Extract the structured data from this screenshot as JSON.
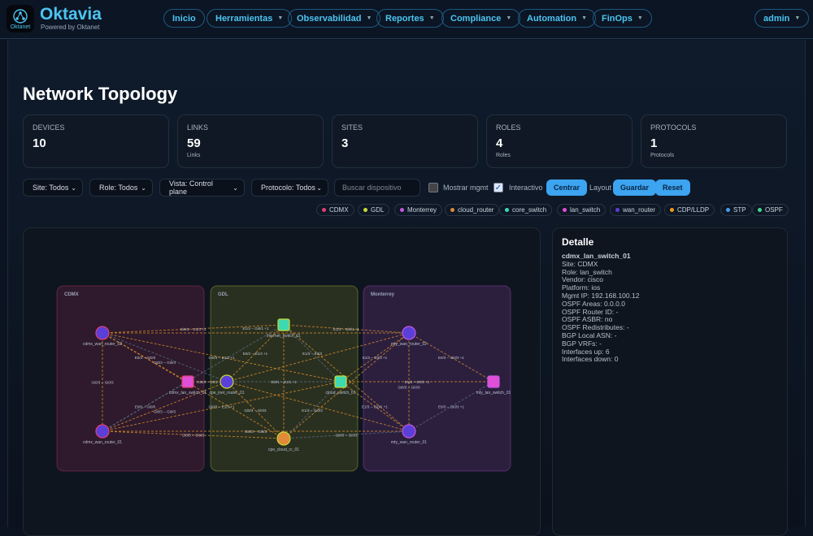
{
  "app": {
    "name": "Oktavia",
    "powered": "Powered by Oktanet",
    "logo_text": "Oktanet"
  },
  "nav": [
    {
      "label": "Inicio"
    },
    {
      "label": "Herramientas",
      "dropdown": true
    },
    {
      "label": "Observabilidad",
      "dropdown": true
    },
    {
      "label": "Reportes",
      "dropdown": true
    },
    {
      "label": "Compliance",
      "dropdown": true
    },
    {
      "label": "Automation",
      "dropdown": true
    },
    {
      "label": "FinOps",
      "dropdown": true
    }
  ],
  "user": {
    "label": "admin"
  },
  "page": {
    "title": "Network Topology"
  },
  "stats": [
    {
      "label": "DEVICES",
      "value": "10",
      "sub": ""
    },
    {
      "label": "LINKS",
      "value": "59",
      "sub": "Links"
    },
    {
      "label": "SITES",
      "value": "3",
      "sub": ""
    },
    {
      "label": "ROLES",
      "value": "4",
      "sub": "Roles"
    },
    {
      "label": "PROTOCOLS",
      "value": "1",
      "sub": "Protocols"
    }
  ],
  "filters": {
    "site": "Site: Todos",
    "role": "Role: Todos",
    "vista": "Vista: Control plane",
    "protocolo": "Protocolo: Todos",
    "search_placeholder": "Buscar dispositivo",
    "mostrar_mgmt": "Mostrar mgmt",
    "mostrar_mgmt_checked": false,
    "interactivo": "Interactivo",
    "interactivo_checked": true,
    "centrar": "Centrar",
    "layout": "Layout",
    "guardar": "Guardar",
    "reset": "Reset"
  },
  "legend": [
    {
      "label": "CDMX",
      "color": "#e0406f"
    },
    {
      "label": "GDL",
      "color": "#c8d93a"
    },
    {
      "label": "Monterrey",
      "color": "#c558e0"
    },
    {
      "label": "cloud_router",
      "color": "#e08a3a"
    },
    {
      "label": "core_switch",
      "color": "#3fd9b0"
    },
    {
      "label": "lan_switch",
      "color": "#e04fd9"
    },
    {
      "label": "wan_router",
      "color": "#5b3fd9"
    },
    {
      "label": "CDP/LLDP",
      "color": "#f29a1a"
    },
    {
      "label": "STP",
      "color": "#4a9cf0"
    },
    {
      "label": "OSPF",
      "color": "#3fd98a"
    }
  ],
  "topology": {
    "sites": [
      {
        "name": "CDMX",
        "color": "#e0406f"
      },
      {
        "name": "GDL",
        "color": "#c8d93a"
      },
      {
        "name": "Monterrey",
        "color": "#c558e0"
      }
    ],
    "nodes": [
      {
        "id": "cdmx_wan_router_02",
        "site": "CDMX",
        "role": "wan_router"
      },
      {
        "id": "cdmx_wan_router_01",
        "site": "CDMX",
        "role": "wan_router"
      },
      {
        "id": "cdmx_lan_switch_01",
        "site": "CDMX",
        "role": "lan_switch"
      },
      {
        "id": "cpe_inet_router_01",
        "site": "GDL",
        "role": "wan_router"
      },
      {
        "id": "internet_switch_01",
        "site": "GDL",
        "role": "core_switch"
      },
      {
        "id": "cloud_switch_01",
        "site": "GDL",
        "role": "core_switch"
      },
      {
        "id": "cpe_cloud_rc_01",
        "site": "GDL",
        "role": "cloud_router"
      },
      {
        "id": "mty_wan_router_02",
        "site": "Monterrey",
        "role": "wan_router"
      },
      {
        "id": "mty_wan_router_01",
        "site": "Monterrey",
        "role": "wan_router"
      },
      {
        "id": "mty_lan_switch_01",
        "site": "Monterrey",
        "role": "lan_switch"
      }
    ],
    "edges": [
      {
        "s": "cdmx_wan_router_02",
        "t": "cdmx_wan_router_01",
        "label": "Gi0/3 -- Gi0/3"
      },
      {
        "s": "cdmx_wan_router_02",
        "t": "internet_switch_01",
        "label": "Gi0/3 -- E1/3 +1"
      },
      {
        "s": "cdmx_wan_router_02",
        "t": "cdmx_lan_switch_01",
        "label": "E0/3 -- Gi0/3"
      },
      {
        "s": "cdmx_wan_router_02",
        "t": "cpe_inet_router_01",
        "label": "Gi0/3 -- Gi0/3"
      },
      {
        "s": "cdmx_wan_router_02",
        "t": "cloud_switch_01",
        "label": "Gi0/3 -- E1/3 +1"
      },
      {
        "s": "cdmx_wan_router_02",
        "t": "mty_wan_router_02",
        "label": "E1/3 -- Gi0/1 +1"
      },
      {
        "s": "cdmx_wan_router_02",
        "t": "cpe_cloud_rc_01",
        "label": ""
      },
      {
        "s": "cdmx_wan_router_01",
        "t": "cdmx_lan_switch_01",
        "label": "E0/0 -- Gi0/0"
      },
      {
        "s": "cdmx_wan_router_01",
        "t": "cpe_inet_router_01",
        "label": "Gi0/3 -- Gi0/3"
      },
      {
        "s": "cdmx_wan_router_01",
        "t": "cpe_cloud_rc_01",
        "label": "Gi0/3 -- Gi0/3"
      },
      {
        "s": "cdmx_wan_router_01",
        "t": "mty_wan_router_01",
        "label": "Gi0/3 -- Gi0/3"
      },
      {
        "s": "cdmx_wan_router_01",
        "t": "internet_switch_01",
        "label": ""
      },
      {
        "s": "cdmx_wan_router_01",
        "t": "cloud_switch_01",
        "label": "Gi0/3 -- E1/3 +1"
      },
      {
        "s": "cdmx_lan_switch_01",
        "t": "cpe_inet_router_01",
        "label": "Gi0/3 -- E0/1"
      },
      {
        "s": "internet_switch_01",
        "t": "cpe_inet_router_01",
        "label": "E0/2 -- E1/3 +1"
      },
      {
        "s": "internet_switch_01",
        "t": "cloud_switch_01",
        "label": "E1/3 -- E0/3"
      },
      {
        "s": "internet_switch_01",
        "t": "cpe_cloud_rc_01",
        "label": ""
      },
      {
        "s": "internet_switch_01",
        "t": "mty_wan_router_02",
        "label": "E1/3 -- Gi0/1 +1"
      },
      {
        "s": "internet_switch_01",
        "t": "mty_wan_router_01",
        "label": ""
      },
      {
        "s": "cpe_inet_router_01",
        "t": "cloud_switch_01",
        "label": "Gi0/1 -- E1/1 +1"
      },
      {
        "s": "cpe_inet_router_01",
        "t": "cpe_cloud_rc_01",
        "label": "Gi0/3 -- Gi0/3"
      },
      {
        "s": "cpe_inet_router_01",
        "t": "mty_wan_router_02",
        "label": ""
      },
      {
        "s": "cpe_inet_router_01",
        "t": "mty_wan_router_01",
        "label": ""
      },
      {
        "s": "cloud_switch_01",
        "t": "cpe_cloud_rc_01",
        "label": "E1/3 -- Gi0/3"
      },
      {
        "s": "cloud_switch_01",
        "t": "mty_wan_router_02",
        "label": "E1/3 -- E0/3 +1"
      },
      {
        "s": "cloud_switch_01",
        "t": "mty_wan_router_01",
        "label": "E1/3 -- Gi0/1 +1"
      },
      {
        "s": "cloud_switch_01",
        "t": "mty_lan_switch_01",
        "label": "E1/3 -- E0/3 +1"
      },
      {
        "s": "cpe_cloud_rc_01",
        "t": "mty_wan_router_01",
        "label": "Gi0/3 -- Gi0/3"
      },
      {
        "s": "cpe_cloud_rc_01",
        "t": "mty_wan_router_02",
        "label": ""
      },
      {
        "s": "mty_wan_router_02",
        "t": "mty_wan_router_01",
        "label": "Gi0/3 -- Gi0/3"
      },
      {
        "s": "mty_wan_router_02",
        "t": "mty_lan_switch_01",
        "label": "E0/3 -- Gi0/3 +1"
      },
      {
        "s": "mty_wan_router_01",
        "t": "mty_lan_switch_01",
        "label": "E0/3 -- Gi0/3 +1"
      }
    ]
  },
  "detail": {
    "title": "Detalle",
    "device": "cdmx_lan_switch_01",
    "lines": [
      "Site: CDMX",
      "Role: lan_switch",
      "Vendor: cisco",
      "Platform: ios",
      "Mgmt IP: 192.168.100.12",
      "OSPF Areas: 0.0.0.0",
      "OSPF Router ID: -",
      "OSPF ASBR: no",
      "OSPF Redistributes: -",
      "BGP Local ASN: -",
      "BGP VRFs: -",
      "Interfaces up: 6",
      "Interfaces down: 0"
    ]
  }
}
